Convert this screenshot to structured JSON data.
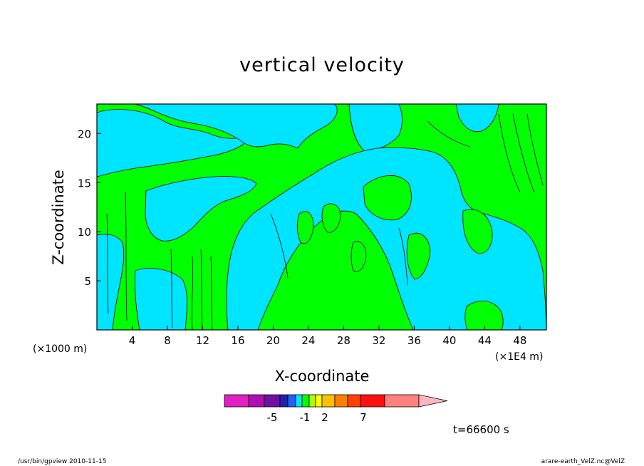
{
  "chart_data": {
    "type": "heatmap",
    "title": "vertical velocity",
    "xlabel": "X-coordinate",
    "ylabel": "Z-coordinate",
    "x_unit_left": "(×1000 m)",
    "x_unit_right": "(×1E4 m)",
    "xlim": [
      0,
      51
    ],
    "ylim": [
      0,
      23
    ],
    "x_ticks": [
      4,
      8,
      12,
      16,
      20,
      24,
      28,
      32,
      36,
      40,
      44,
      48
    ],
    "y_ticks": [
      5,
      10,
      15,
      20
    ],
    "field_colors": {
      "positive": "#00ff00",
      "negative": "#00e5ff"
    },
    "colorbar": {
      "colors": [
        "#e020c0",
        "#b010b0",
        "#7010a0",
        "#2020b0",
        "#2060ff",
        "#00e5ff",
        "#00ff00",
        "#b0ff00",
        "#ffff00",
        "#ffc000",
        "#ff8000",
        "#ff4000",
        "#ff1010",
        "#ff8080",
        "#ffb6c1"
      ],
      "labels": [
        "-5",
        "-1",
        "2",
        "7"
      ]
    },
    "time_label": "t=66600 s"
  },
  "footer": {
    "left": "/usr/bin/gpview  2010-11-15",
    "right": "arare-earth_VelZ.nc@VelZ"
  }
}
